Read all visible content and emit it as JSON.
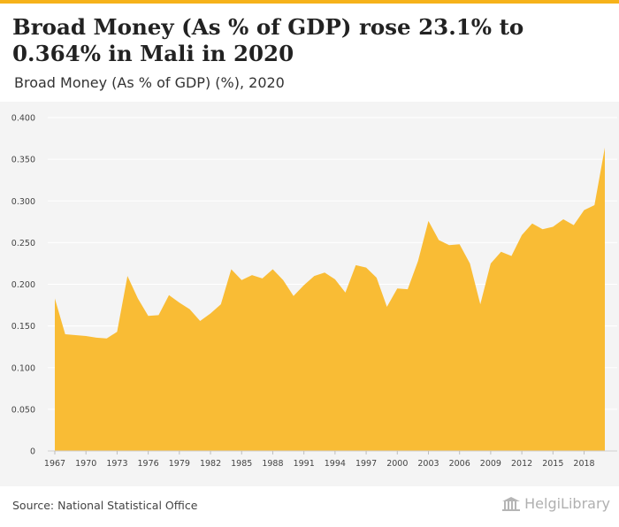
{
  "header": {
    "title": "Broad Money (As % of GDP) rose 23.1% to 0.364% in Mali in 2020",
    "subtitle": "Broad Money (As % of GDP) (%), 2020"
  },
  "footer": {
    "source": "Source: National Statistical Office",
    "logo_text": "HelgiLibrary",
    "logo_icon": "helgi-building-icon"
  },
  "colors": {
    "accent": "#f6b21a",
    "area_fill": "#f9bc35",
    "chart_bg": "#f4f4f4",
    "grid": "#ffffff"
  },
  "chart_data": {
    "type": "area",
    "title": "Broad Money (As % of GDP) rose 23.1% to 0.364% in Mali in 2020",
    "subtitle": "Broad Money (As % of GDP) (%), 2020",
    "xlabel": "",
    "ylabel": "",
    "xlim": [
      1967,
      2020
    ],
    "ylim": [
      0,
      0.4
    ],
    "y_ticks": [
      0,
      0.05,
      0.1,
      0.15,
      0.2,
      0.25,
      0.3,
      0.35,
      0.4
    ],
    "y_tick_labels": [
      "0",
      "0.050",
      "0.100",
      "0.150",
      "0.200",
      "0.250",
      "0.300",
      "0.350",
      "0.400"
    ],
    "x_ticks": [
      1967,
      1970,
      1973,
      1976,
      1979,
      1982,
      1985,
      1988,
      1991,
      1994,
      1997,
      2000,
      2003,
      2006,
      2009,
      2012,
      2015,
      2018
    ],
    "grid": true,
    "legend": "none",
    "x": [
      1967,
      1968,
      1969,
      1970,
      1971,
      1972,
      1973,
      1974,
      1975,
      1976,
      1977,
      1978,
      1979,
      1980,
      1981,
      1982,
      1983,
      1984,
      1985,
      1986,
      1987,
      1988,
      1989,
      1990,
      1991,
      1992,
      1993,
      1994,
      1995,
      1996,
      1997,
      1998,
      1999,
      2000,
      2001,
      2002,
      2003,
      2004,
      2005,
      2006,
      2007,
      2008,
      2009,
      2010,
      2011,
      2012,
      2013,
      2014,
      2015,
      2016,
      2017,
      2018,
      2019,
      2020
    ],
    "values": [
      0.183,
      0.14,
      0.139,
      0.138,
      0.136,
      0.135,
      0.143,
      0.21,
      0.183,
      0.162,
      0.163,
      0.187,
      0.178,
      0.17,
      0.156,
      0.165,
      0.176,
      0.218,
      0.205,
      0.211,
      0.207,
      0.218,
      0.205,
      0.186,
      0.199,
      0.21,
      0.214,
      0.206,
      0.19,
      0.223,
      0.22,
      0.208,
      0.173,
      0.195,
      0.194,
      0.228,
      0.276,
      0.253,
      0.247,
      0.248,
      0.225,
      0.176,
      0.225,
      0.239,
      0.234,
      0.259,
      0.273,
      0.266,
      0.269,
      0.278,
      0.271,
      0.289,
      0.295,
      0.364
    ]
  }
}
